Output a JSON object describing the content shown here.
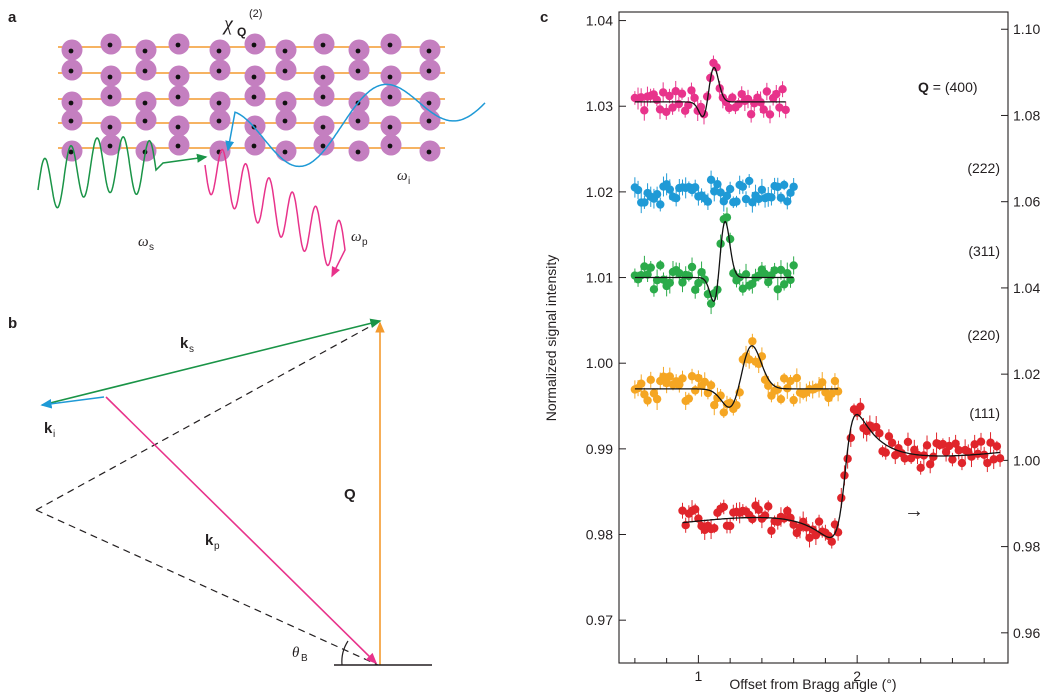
{
  "panels": {
    "a": {
      "letter": "a",
      "chi_symbol": "χ",
      "chi_subscript": "Q",
      "chi_superscript": "(2)",
      "omega_s": "ω",
      "omega_s_sub": "s",
      "omega_p": "ω",
      "omega_p_sub": "p",
      "omega_i": "ω",
      "omega_i_sub": "i",
      "colors": {
        "atom": "#c47fc0",
        "plane": "#f39a2e",
        "signal": "#1a9447",
        "pump": "#e8338b",
        "idler": "#1f9ad6"
      }
    },
    "b": {
      "letter": "b",
      "k_s": "k",
      "k_s_sub": "s",
      "k_i": "k",
      "k_i_sub": "i",
      "k_p": "k",
      "k_p_sub": "p",
      "Q": "Q",
      "theta": "θ",
      "theta_sub": "B"
    },
    "c": {
      "letter": "c"
    }
  },
  "chart_data": {
    "type": "scatter",
    "xlabel": "Offset from Bragg angle (°)",
    "ylabel": "Normalized signal intensity",
    "xlim": [
      0.5,
      2.95
    ],
    "ylim_left": [
      0.965,
      1.041
    ],
    "ylim_right": [
      0.953,
      1.104
    ],
    "x_ticks": [
      1,
      2
    ],
    "y_ticks_left": [
      "0.97",
      "0.98",
      "0.99",
      "1.00",
      "1.01",
      "1.02",
      "1.03",
      "1.04"
    ],
    "y_ticks_left_values": [
      0.97,
      0.98,
      0.99,
      1.0,
      1.01,
      1.02,
      1.03,
      1.04
    ],
    "y_ticks_right": [
      "0.96",
      "0.98",
      "1.00",
      "1.02",
      "1.04",
      "1.06",
      "1.08",
      "1.10"
    ],
    "y_ticks_right_values": [
      0.96,
      0.98,
      1.0,
      1.02,
      1.04,
      1.06,
      1.08,
      1.1
    ],
    "arrow_note": "→",
    "series": [
      {
        "name": "(400)",
        "name_bold_prefix": "Q",
        "name_rest": " = (400)",
        "color": "#e8338b",
        "axis": "left",
        "x_range": [
          0.6,
          1.55
        ],
        "baseline": 1.0305,
        "fano": {
          "x0": 1.07,
          "amp": 0.004,
          "width": 0.05
        }
      },
      {
        "name": "(222)",
        "color": "#1f9ad6",
        "axis": "left",
        "x_range": [
          0.6,
          1.6
        ],
        "baseline": 1.02,
        "fano": null
      },
      {
        "name": "(311)",
        "color": "#2bab4a",
        "axis": "left",
        "x_range": [
          0.6,
          1.6
        ],
        "baseline": 1.01,
        "fano": {
          "x0": 1.14,
          "amp": 0.0065,
          "width": 0.05
        }
      },
      {
        "name": "(220)",
        "color": "#f5a623",
        "axis": "left",
        "x_range": [
          0.6,
          1.88
        ],
        "baseline": 0.997,
        "fano": {
          "x0": 1.28,
          "amp": 0.005,
          "width": 0.1
        }
      },
      {
        "name": "(111)",
        "color": "#e0252b",
        "axis": "right",
        "x_range": [
          0.9,
          2.9
        ],
        "baseline": 0.99,
        "fano": {
          "x0": 1.93,
          "amp": 0.028,
          "width": 0.08
        }
      }
    ]
  }
}
